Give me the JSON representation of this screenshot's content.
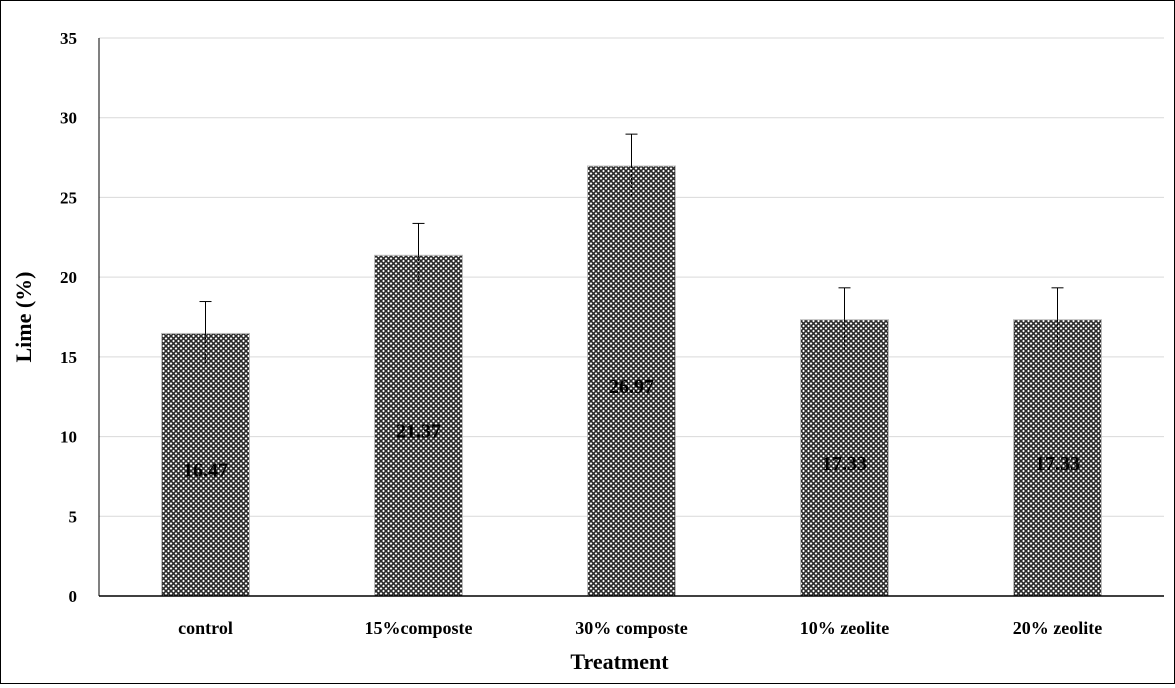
{
  "chart_data": {
    "type": "bar",
    "title": "",
    "xlabel": "Treatment",
    "ylabel": "Lime (%)",
    "ylim": [
      0,
      35
    ],
    "yticks": [
      0,
      5,
      10,
      15,
      20,
      25,
      30,
      35
    ],
    "grid": true,
    "categories": [
      "control",
      "15%composte",
      "30% composte",
      "10% zeolite",
      "20% zeolite"
    ],
    "values": [
      16.47,
      21.37,
      26.97,
      17.33,
      17.33
    ],
    "data_labels": [
      "16.47",
      "21.37",
      "26.97",
      "17.33",
      "17.33"
    ],
    "error_bars": [
      2.0,
      2.0,
      2.0,
      2.0,
      2.0
    ],
    "bar_fill": "crosshatch-pattern",
    "colors": {
      "bar_dark": "#2b2b2b",
      "bar_light": "#ffffff",
      "grid": "#d9d9d9",
      "axis": "#000000"
    }
  }
}
